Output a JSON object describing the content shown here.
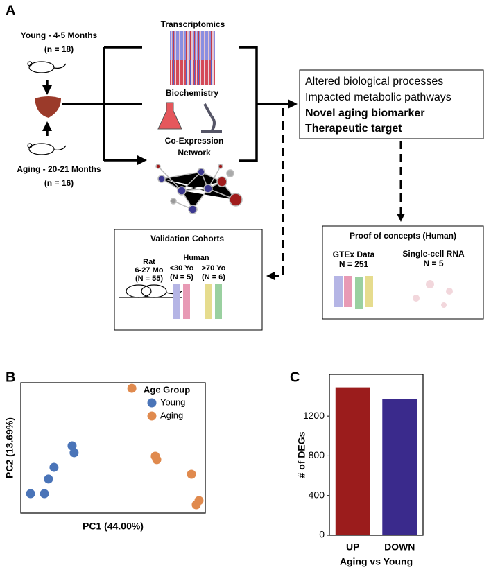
{
  "panel_a": {
    "label": "A",
    "young": {
      "title": "Young - 4-5 Months",
      "n": "(n = 18)"
    },
    "aging": {
      "title": "Aging - 20-21 Months",
      "n": "(n = 16)"
    },
    "methods": [
      "Transcriptomics",
      "Biochemistry",
      "Co-Expression",
      "Network"
    ],
    "outcomes": [
      "Altered biological processes",
      "Impacted metabolic pathways",
      "Novel aging biomarker",
      "Therapeutic target"
    ],
    "proof": {
      "title": "Proof of concepts (Human)",
      "gtex": "GTEx Data",
      "gtex_n": "N = 251",
      "sc": "Single-cell RNA",
      "sc_n": "N = 5"
    },
    "validation": {
      "title": "Validation Cohorts",
      "rat": "Rat",
      "rat_age": "6-27 Mo",
      "rat_n": "(N = 55)",
      "human": "Human",
      "young_age": "<30 Yo",
      "young_n": "(N = 5)",
      "old_age": ">70 Yo",
      "old_n": "(N = 6)"
    }
  },
  "chart_data": [
    {
      "type": "scatter",
      "label": "B",
      "xlabel": "PC1 (44.00%)",
      "ylabel": "PC2 (13.69%)",
      "legend_title": "Age Group",
      "legend": "upper right",
      "xlim": [
        0,
        100
      ],
      "ylim": [
        0,
        100
      ],
      "series": [
        {
          "name": "Young",
          "color": "#4a74b8",
          "x": [
            27.8,
            28.9,
            18.0,
            15.0,
            5.3,
            12.8
          ],
          "values": [
            51.6,
            46.3,
            35.1,
            26.1,
            14.9,
            14.9
          ]
        },
        {
          "name": "Aging",
          "color": "#e08a4e",
          "x": [
            60.2,
            72.9,
            73.7,
            92.5,
            96.6,
            95.1
          ],
          "values": [
            95.7,
            43.6,
            41.0,
            29.8,
            9.6,
            6.4
          ]
        }
      ]
    },
    {
      "type": "bar",
      "label": "C",
      "xlabel": "Aging vs Young",
      "ylabel": "# of DEGs",
      "categories": [
        "UP",
        "DOWN"
      ],
      "values": [
        1490,
        1370
      ],
      "colors": [
        "#9b1c1c",
        "#3a2a8c"
      ],
      "ylim": [
        0,
        1620
      ],
      "yticks": [
        0,
        400,
        800,
        1200
      ]
    }
  ]
}
